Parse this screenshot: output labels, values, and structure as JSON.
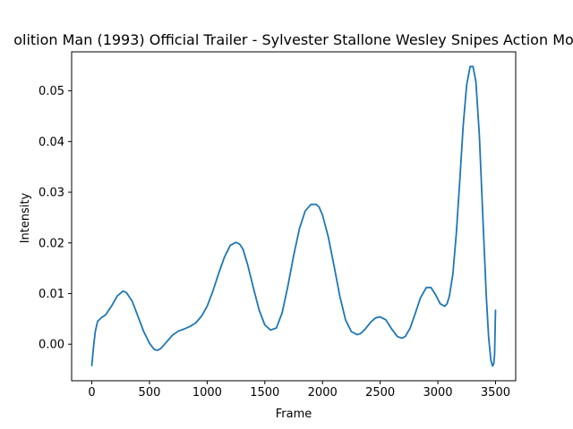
{
  "chart_data": {
    "type": "line",
    "title": "olition Man (1993) Official Trailer - Sylvester Stallone Wesley Snipes Action Mo",
    "xlabel": "Frame",
    "ylabel": "Intensity",
    "xlim": [
      -175,
      3675
    ],
    "ylim": [
      -0.0072,
      0.0577
    ],
    "xticks": [
      0,
      500,
      1000,
      1500,
      2000,
      2500,
      3000,
      3500
    ],
    "yticks": [
      0.0,
      0.01,
      0.02,
      0.03,
      0.04,
      0.05
    ],
    "ytick_labels": [
      "0.00",
      "0.01",
      "0.02",
      "0.03",
      "0.04",
      "0.05"
    ],
    "grid": false,
    "series": [
      {
        "color": "#1f77b4",
        "x": [
          0,
          15,
          30,
          50,
          80,
          120,
          170,
          220,
          270,
          300,
          350,
          400,
          450,
          500,
          540,
          570,
          600,
          650,
          700,
          750,
          800,
          850,
          900,
          950,
          1000,
          1050,
          1100,
          1150,
          1200,
          1250,
          1280,
          1310,
          1350,
          1400,
          1450,
          1500,
          1550,
          1600,
          1650,
          1700,
          1750,
          1800,
          1850,
          1900,
          1945,
          1970,
          2000,
          2050,
          2100,
          2150,
          2200,
          2250,
          2300,
          2330,
          2370,
          2420,
          2460,
          2500,
          2550,
          2600,
          2650,
          2690,
          2720,
          2760,
          2800,
          2850,
          2900,
          2940,
          2980,
          3020,
          3060,
          3080,
          3100,
          3130,
          3160,
          3190,
          3220,
          3250,
          3280,
          3305,
          3330,
          3360,
          3390,
          3420,
          3440,
          3460,
          3475,
          3485,
          3492,
          3500
        ],
        "y": [
          -0.0042,
          -0.0005,
          0.0025,
          0.0045,
          0.0052,
          0.0058,
          0.0075,
          0.0095,
          0.0105,
          0.0102,
          0.0085,
          0.0055,
          0.0025,
          0.0002,
          -0.001,
          -0.0012,
          -0.0008,
          0.0005,
          0.0018,
          0.0026,
          0.003,
          0.0035,
          0.0042,
          0.0055,
          0.0075,
          0.0105,
          0.014,
          0.0172,
          0.0195,
          0.0201,
          0.0198,
          0.0188,
          0.0158,
          0.0112,
          0.0068,
          0.0038,
          0.0028,
          0.0032,
          0.0062,
          0.0115,
          0.0175,
          0.0228,
          0.0263,
          0.0276,
          0.0276,
          0.0271,
          0.0255,
          0.0212,
          0.0155,
          0.0095,
          0.0048,
          0.0025,
          0.0019,
          0.0021,
          0.003,
          0.0044,
          0.0052,
          0.0054,
          0.0048,
          0.003,
          0.0015,
          0.0012,
          0.0016,
          0.0032,
          0.0058,
          0.0092,
          0.0112,
          0.0112,
          0.0098,
          0.008,
          0.0075,
          0.008,
          0.0095,
          0.0138,
          0.0218,
          0.0322,
          0.0432,
          0.0512,
          0.0548,
          0.0548,
          0.0518,
          0.0412,
          0.0252,
          0.0095,
          0.0015,
          -0.0032,
          -0.0043,
          -0.0038,
          -0.002,
          0.0067
        ]
      }
    ]
  }
}
